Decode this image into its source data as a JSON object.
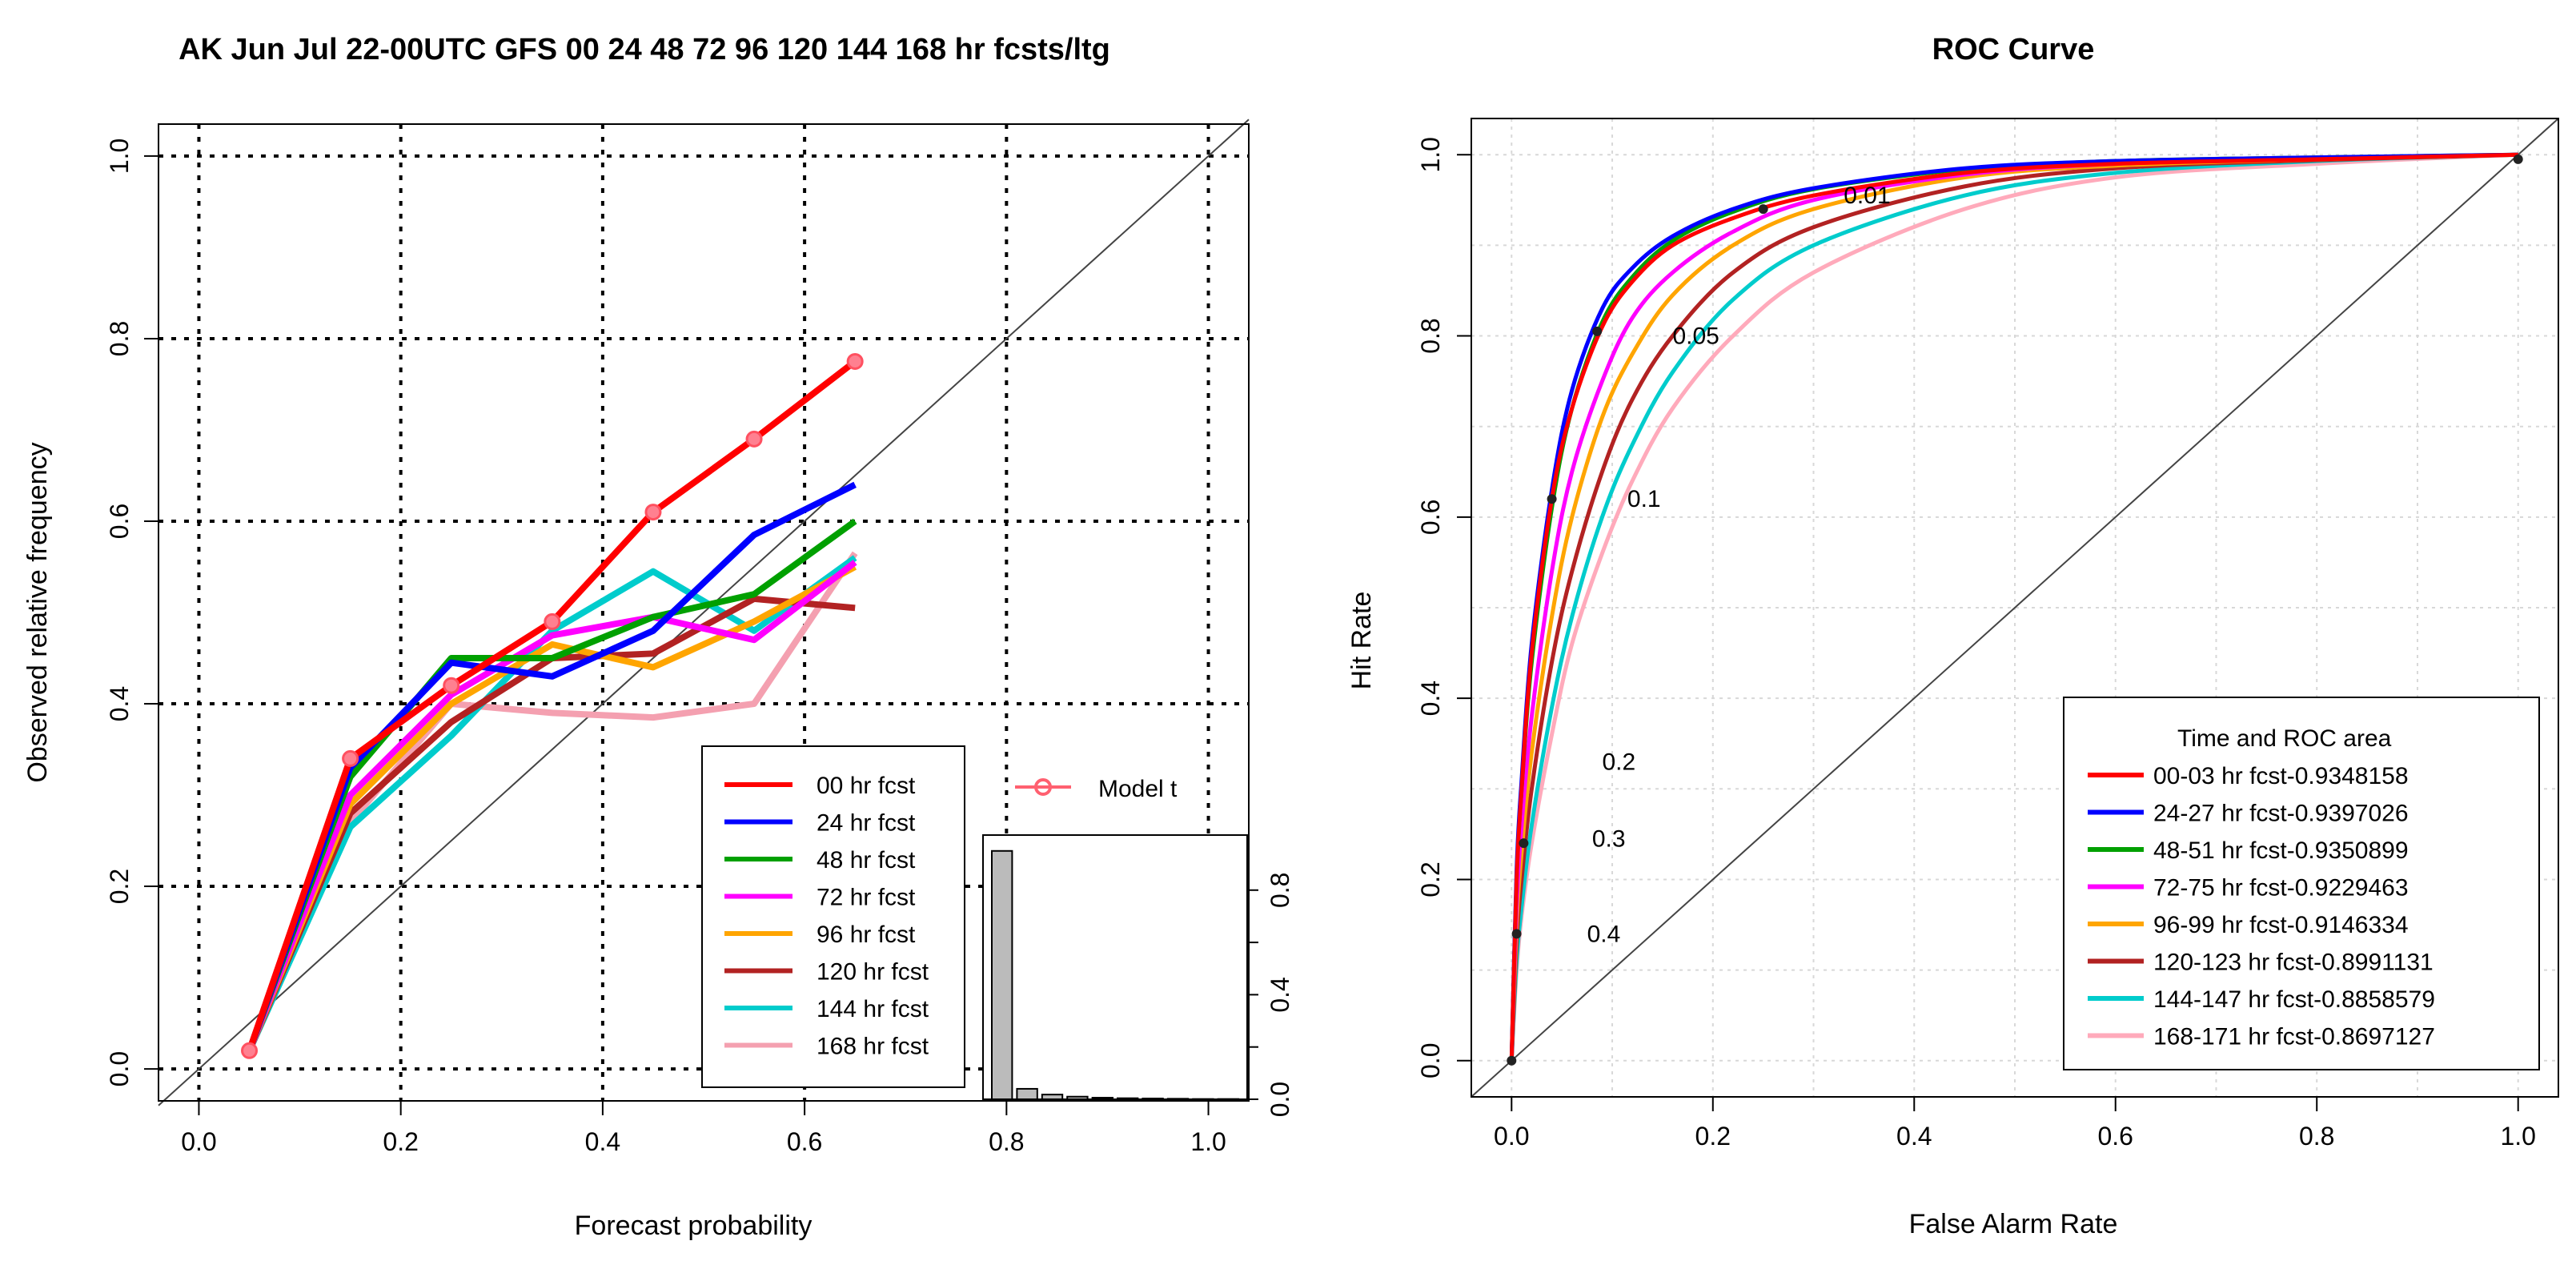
{
  "chart_data": [
    {
      "type": "line",
      "title": "AK Jun Jul 22-00UTC GFS 00 24 48 72 96 120 144 168 hr fcsts/ltg",
      "xlabel": "Forecast probability",
      "ylabel": "Observed relative frequency",
      "xlim": [
        -0.04,
        1.04
      ],
      "ylim": [
        -0.035,
        1.035
      ],
      "xticks": [
        "0.0",
        "0.2",
        "0.4",
        "0.6",
        "0.8",
        "1.0"
      ],
      "yticks": [
        "0.0",
        "0.2",
        "0.4",
        "0.6",
        "0.8",
        "1.0"
      ],
      "grid": "dotted at 0.2 intervals",
      "diagonal": true,
      "legend_placement": "bottom-center",
      "x": [
        0.05,
        0.15,
        0.25,
        0.35,
        0.45,
        0.55,
        0.65
      ],
      "series": [
        {
          "name": "00 hr fcst",
          "color": "#ff0000",
          "values": [
            0.02,
            0.34,
            0.42,
            0.49,
            0.61,
            0.69,
            0.775
          ]
        },
        {
          "name": "24 hr fcst",
          "color": "#0000ff",
          "values": [
            0.02,
            0.33,
            0.445,
            0.43,
            0.48,
            0.585,
            0.64
          ]
        },
        {
          "name": "48 hr fcst",
          "color": "#00a000",
          "values": [
            0.02,
            0.32,
            0.45,
            0.45,
            0.495,
            0.52,
            0.6
          ]
        },
        {
          "name": "72 hr fcst",
          "color": "#ff00ff",
          "values": [
            0.02,
            0.3,
            0.41,
            0.475,
            0.495,
            0.47,
            0.555
          ]
        },
        {
          "name": "96 hr fcst",
          "color": "#ffa500",
          "values": [
            0.02,
            0.29,
            0.4,
            0.465,
            0.44,
            0.49,
            0.55
          ]
        },
        {
          "name": "120 hr fcst",
          "color": "#b22222",
          "values": [
            0.02,
            0.28,
            0.38,
            0.45,
            0.455,
            0.515,
            0.505
          ]
        },
        {
          "name": "144 hr fcst",
          "color": "#00cccc",
          "values": [
            0.02,
            0.265,
            0.365,
            0.48,
            0.545,
            0.48,
            0.56
          ]
        },
        {
          "name": "168 hr fcst",
          "color": "#f4a0b0",
          "values": [
            0.02,
            0.27,
            0.4,
            0.39,
            0.385,
            0.4,
            0.565
          ]
        }
      ],
      "model_legend": "Model t",
      "inset_histogram": {
        "yticks": [
          "0.0",
          "0.4",
          "0.8"
        ],
        "ylim": [
          0,
          0.98
        ],
        "bins": [
          0.05,
          0.15,
          0.25,
          0.35,
          0.45,
          0.55,
          0.65,
          0.75,
          0.85,
          0.95
        ],
        "values": [
          0.95,
          0.04,
          0.018,
          0.01,
          0.006,
          0.004,
          0.003,
          0.002,
          0.001,
          0.001
        ]
      }
    },
    {
      "type": "line",
      "title": "ROC Curve",
      "xlabel": "False Alarm Rate",
      "ylabel": "Hit Rate",
      "xlim": [
        -0.04,
        1.04
      ],
      "ylim": [
        -0.04,
        1.04
      ],
      "xticks": [
        "0.0",
        "0.2",
        "0.4",
        "0.6",
        "0.8",
        "1.0"
      ],
      "yticks": [
        "0.0",
        "0.2",
        "0.4",
        "0.6",
        "0.8",
        "1.0"
      ],
      "grid": "light dotted at 0.1 intervals",
      "diagonal": true,
      "legend_title": "Time and ROC area",
      "legend_placement": "bottom-right",
      "series": [
        {
          "name": "00-03 hr fcst-0.9348158",
          "color": "#ff0000",
          "x": [
            0,
            0.005,
            0.01,
            0.02,
            0.04,
            0.06,
            0.09,
            0.12,
            0.16,
            0.22,
            0.3,
            0.45,
            0.6,
            0.8,
            1.0
          ],
          "y": [
            0,
            0.2,
            0.3,
            0.45,
            0.62,
            0.72,
            0.81,
            0.86,
            0.9,
            0.93,
            0.955,
            0.98,
            0.99,
            0.995,
            1.0
          ]
        },
        {
          "name": "24-27 hr fcst-0.9397026",
          "color": "#0000ff",
          "x": [
            0,
            0.005,
            0.01,
            0.02,
            0.04,
            0.06,
            0.09,
            0.12,
            0.16,
            0.22,
            0.3,
            0.45,
            0.6,
            0.8,
            1.0
          ],
          "y": [
            0,
            0.21,
            0.31,
            0.46,
            0.63,
            0.74,
            0.83,
            0.875,
            0.91,
            0.94,
            0.963,
            0.985,
            0.993,
            0.997,
            1.0
          ]
        },
        {
          "name": "48-51 hr fcst-0.9350899",
          "color": "#00a000",
          "x": [
            0,
            0.005,
            0.01,
            0.02,
            0.04,
            0.06,
            0.09,
            0.12,
            0.16,
            0.22,
            0.3,
            0.45,
            0.6,
            0.8,
            1.0
          ],
          "y": [
            0,
            0.2,
            0.3,
            0.44,
            0.61,
            0.72,
            0.815,
            0.865,
            0.905,
            0.937,
            0.962,
            0.984,
            0.993,
            0.997,
            1.0
          ]
        },
        {
          "name": "72-75 hr fcst-0.9229463",
          "color": "#ff00ff",
          "x": [
            0,
            0.005,
            0.01,
            0.02,
            0.04,
            0.06,
            0.09,
            0.12,
            0.16,
            0.22,
            0.3,
            0.45,
            0.6,
            0.8,
            1.0
          ],
          "y": [
            0,
            0.17,
            0.26,
            0.38,
            0.54,
            0.65,
            0.75,
            0.82,
            0.87,
            0.915,
            0.95,
            0.978,
            0.99,
            0.996,
            1.0
          ]
        },
        {
          "name": "96-99 hr fcst-0.9146334",
          "color": "#ffa500",
          "x": [
            0,
            0.005,
            0.01,
            0.02,
            0.04,
            0.06,
            0.09,
            0.12,
            0.16,
            0.22,
            0.3,
            0.45,
            0.6,
            0.8,
            1.0
          ],
          "y": [
            0,
            0.15,
            0.23,
            0.34,
            0.49,
            0.6,
            0.71,
            0.78,
            0.845,
            0.9,
            0.94,
            0.975,
            0.988,
            0.995,
            1.0
          ]
        },
        {
          "name": "120-123 hr fcst-0.8991131",
          "color": "#b22222",
          "x": [
            0,
            0.005,
            0.01,
            0.02,
            0.04,
            0.06,
            0.09,
            0.12,
            0.16,
            0.22,
            0.3,
            0.45,
            0.6,
            0.8,
            1.0
          ],
          "y": [
            0,
            0.13,
            0.2,
            0.3,
            0.44,
            0.54,
            0.65,
            0.73,
            0.8,
            0.87,
            0.92,
            0.965,
            0.985,
            0.994,
            1.0
          ]
        },
        {
          "name": "144-147 hr fcst-0.8858579",
          "color": "#00cccc",
          "x": [
            0,
            0.005,
            0.01,
            0.02,
            0.04,
            0.06,
            0.09,
            0.12,
            0.16,
            0.22,
            0.3,
            0.45,
            0.6,
            0.8,
            1.0
          ],
          "y": [
            0,
            0.11,
            0.17,
            0.26,
            0.39,
            0.49,
            0.6,
            0.68,
            0.76,
            0.84,
            0.9,
            0.955,
            0.98,
            0.993,
            1.0
          ]
        },
        {
          "name": "168-171 hr fcst-0.8697127",
          "color": "#ffaabb",
          "x": [
            0,
            0.005,
            0.01,
            0.02,
            0.04,
            0.06,
            0.09,
            0.12,
            0.16,
            0.22,
            0.3,
            0.45,
            0.6,
            0.8,
            1.0
          ],
          "y": [
            0,
            0.1,
            0.16,
            0.24,
            0.36,
            0.46,
            0.56,
            0.64,
            0.72,
            0.8,
            0.87,
            0.94,
            0.975,
            0.99,
            1.0
          ]
        }
      ],
      "threshold_markers": {
        "x": [
          0.0,
          0.005,
          0.012,
          0.04,
          0.085,
          0.25,
          1.0
        ],
        "y": [
          0.0,
          0.14,
          0.24,
          0.62,
          0.805,
          0.94,
          0.995
        ]
      },
      "annotations": [
        {
          "text": "0.01",
          "x": 0.33,
          "y": 0.955
        },
        {
          "text": "0.05",
          "x": 0.16,
          "y": 0.8
        },
        {
          "text": "0.1",
          "x": 0.115,
          "y": 0.62
        },
        {
          "text": "0.2",
          "x": 0.09,
          "y": 0.33
        },
        {
          "text": "0.3",
          "x": 0.08,
          "y": 0.245
        },
        {
          "text": "0.4",
          "x": 0.075,
          "y": 0.14
        }
      ]
    }
  ]
}
